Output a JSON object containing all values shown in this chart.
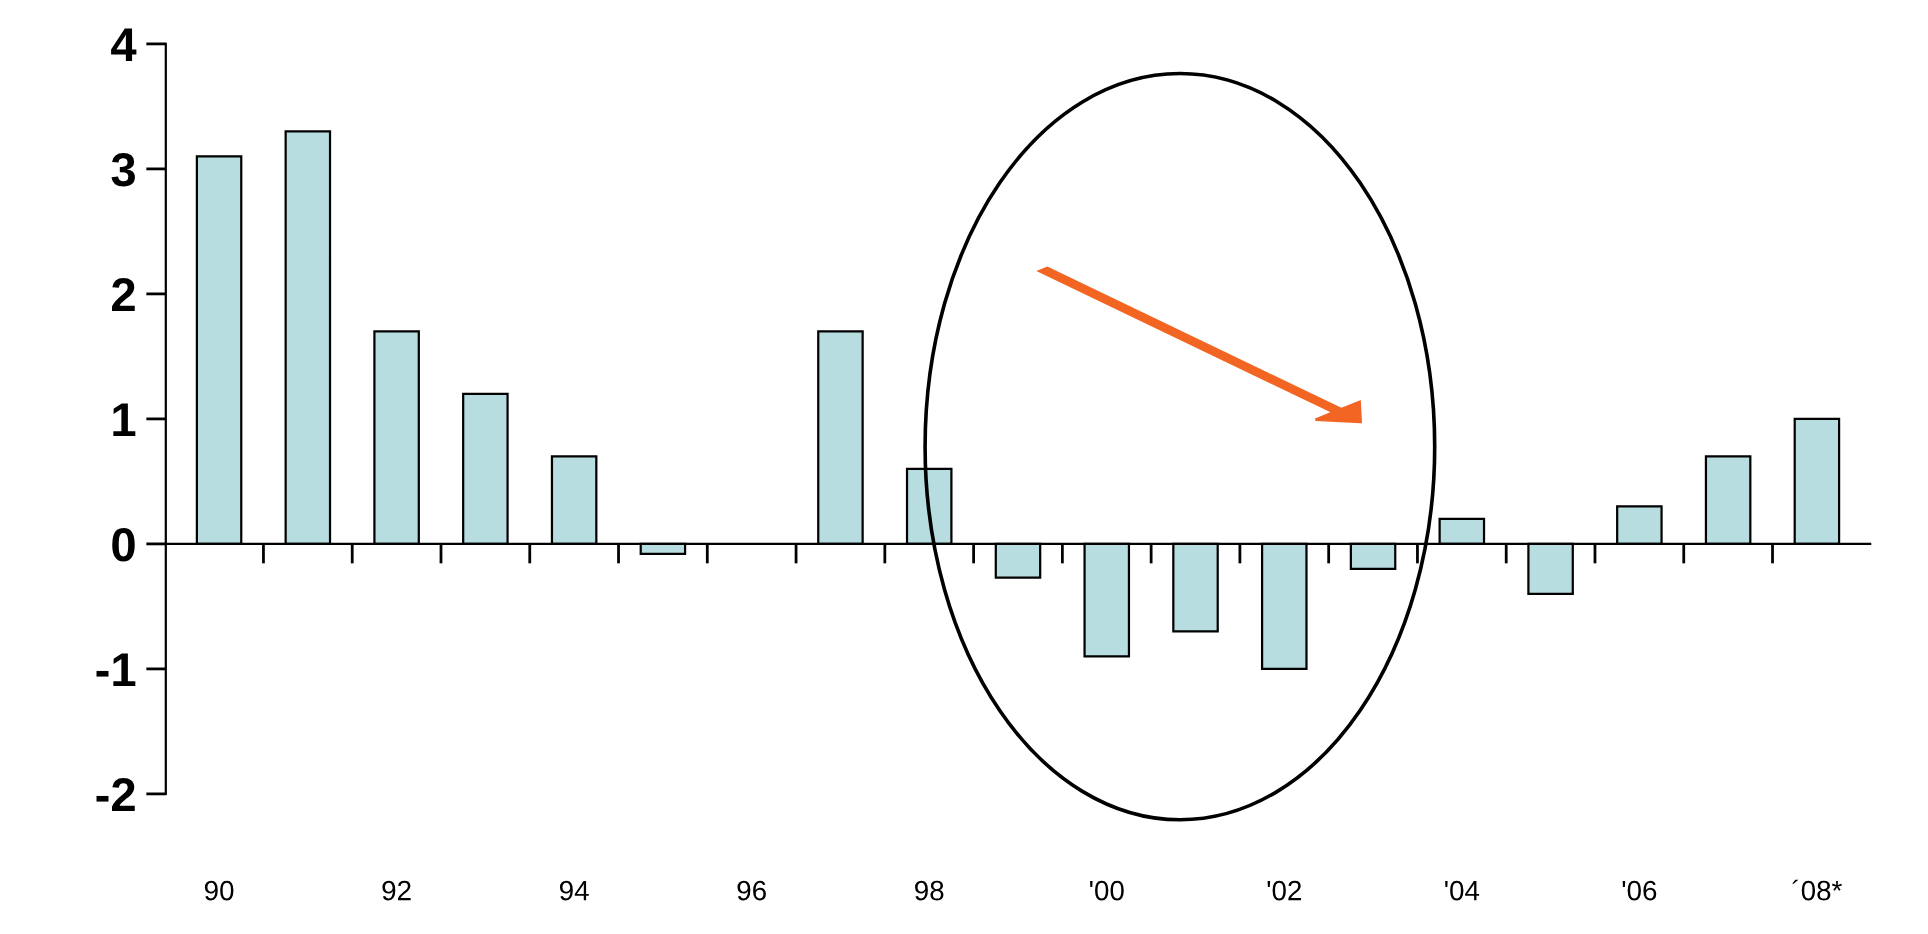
{
  "chart_data": {
    "type": "bar",
    "categories": [
      "90",
      null,
      "92",
      null,
      "94",
      null,
      "96",
      null,
      "98",
      null,
      "'00",
      null,
      "'02",
      null,
      "'04",
      null,
      "'06",
      null,
      "´08*"
    ],
    "values": [
      3.1,
      3.3,
      1.7,
      1.2,
      0.7,
      -0.08,
      null,
      1.7,
      0.6,
      -0.27,
      -0.9,
      -0.7,
      -1.0,
      -0.2,
      0.2,
      -0.4,
      0.3,
      0.7,
      1.0
    ],
    "color": "#b7dde0",
    "ylim": [
      -2,
      4
    ],
    "yticks": [
      -2,
      -1,
      0,
      1,
      2,
      3,
      4
    ]
  }
}
